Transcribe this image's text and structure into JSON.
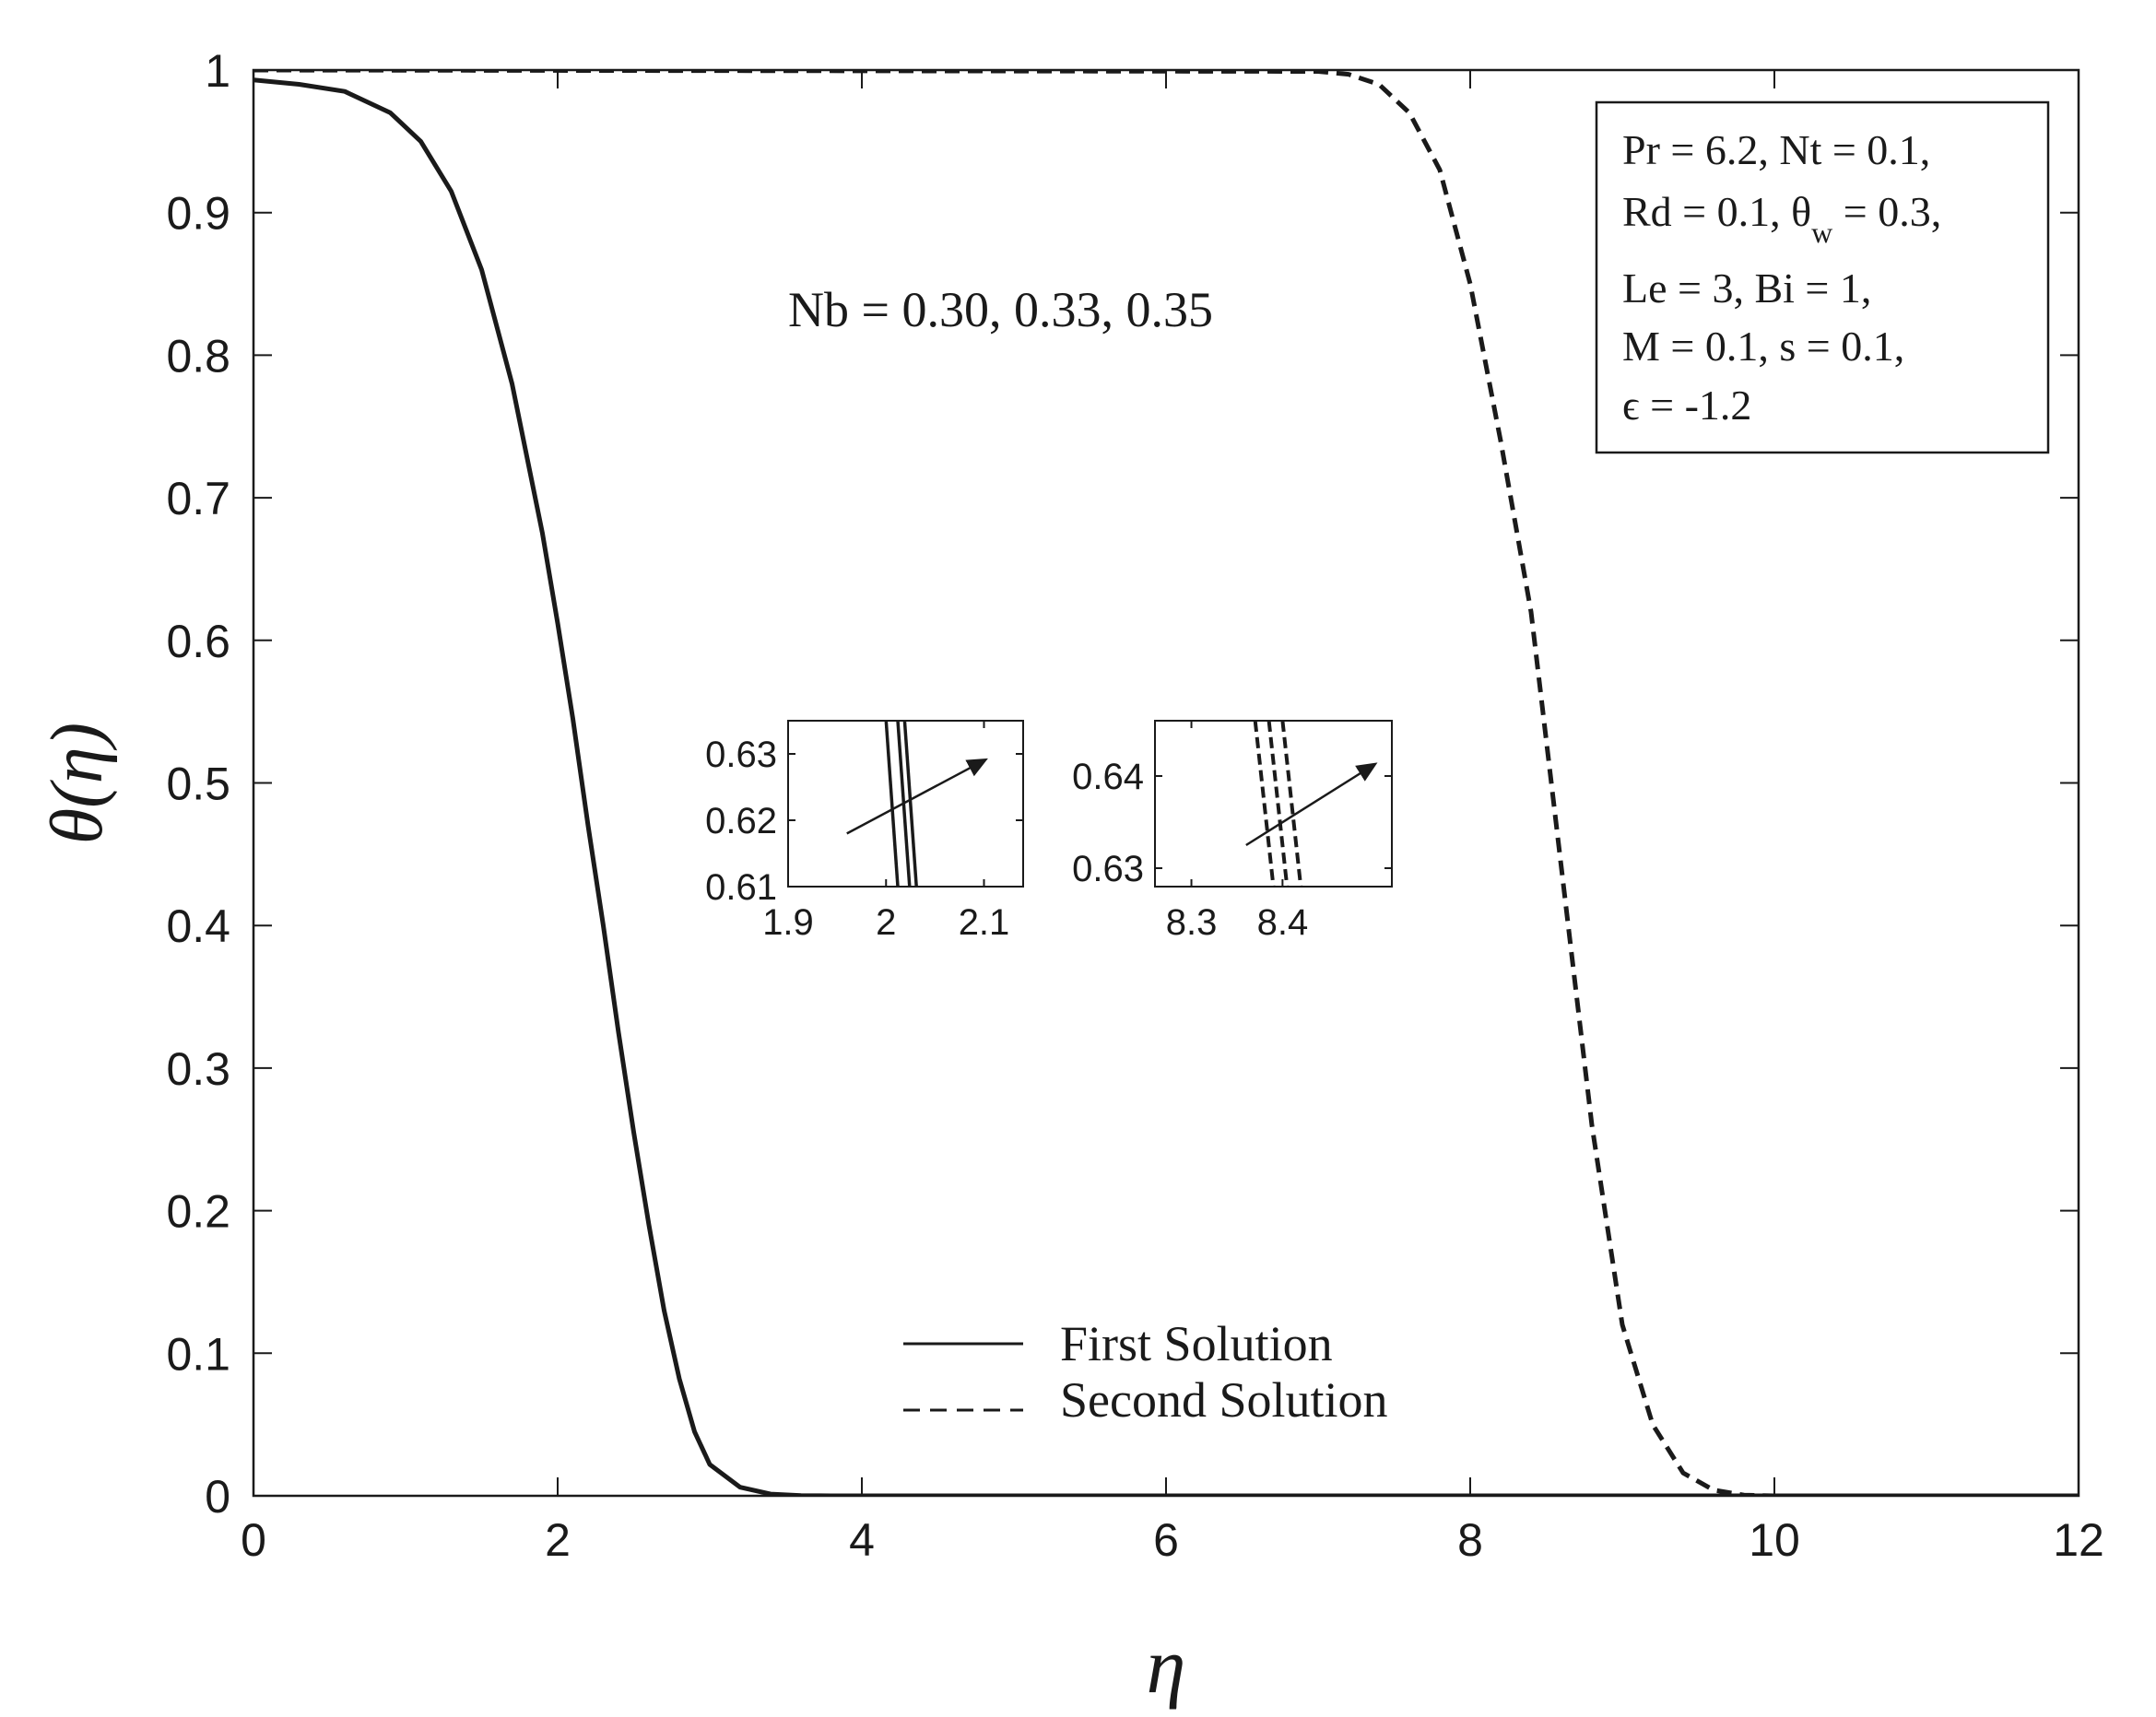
{
  "chart_data": [
    {
      "type": "line",
      "xlabel": "η",
      "ylabel": "θ(η)",
      "xlim": [
        0,
        12
      ],
      "ylim": [
        0,
        1
      ],
      "xticks": [
        "0",
        "2",
        "4",
        "6",
        "8",
        "10",
        "12"
      ],
      "yticks": [
        "0",
        "0.1",
        "0.2",
        "0.3",
        "0.4",
        "0.5",
        "0.6",
        "0.7",
        "0.8",
        "0.9",
        "1"
      ],
      "grid": false,
      "legend_position": "bottom-center",
      "legend": [
        {
          "label": "First Solution",
          "style": "solid"
        },
        {
          "label": "Second Solution",
          "style": "dashed"
        }
      ],
      "annotation": "Nb = 0.30, 0.33, 0.35",
      "parameter_box": {
        "lines": [
          "Pr = 6.2, Nt = 0.1,",
          "Rd = 0.1, θ",
          "w",
          " = 0.3,",
          "Le = 3, Bi = 1,",
          "M = 0.1, s = 0.1,",
          "ϵ = -1.2"
        ]
      },
      "color": "#1a1a1a",
      "series": [
        {
          "style": "solid",
          "x": [
            0,
            0.3,
            0.6,
            0.9,
            1.1,
            1.3,
            1.5,
            1.7,
            1.9,
            2.0,
            2.1,
            2.2,
            2.3,
            2.4,
            2.5,
            2.6,
            2.7,
            2.8,
            2.9,
            3.0,
            3.2,
            3.4,
            3.6,
            3.8,
            4.0,
            12
          ],
          "y": [
            0.993,
            0.99,
            0.985,
            0.97,
            0.95,
            0.915,
            0.86,
            0.78,
            0.675,
            0.612,
            0.545,
            0.47,
            0.4,
            0.325,
            0.255,
            0.19,
            0.13,
            0.082,
            0.045,
            0.022,
            0.006,
            0.0012,
            0.0002,
            0,
            0,
            0
          ]
        },
        {
          "style": "dashed",
          "x": [
            0,
            7.0,
            7.2,
            7.4,
            7.6,
            7.8,
            8.0,
            8.2,
            8.4,
            8.6,
            8.8,
            9.0,
            9.2,
            9.4,
            9.6,
            9.8,
            10.0,
            12
          ],
          "y": [
            1,
            0.999,
            0.997,
            0.99,
            0.97,
            0.93,
            0.85,
            0.74,
            0.62,
            0.44,
            0.26,
            0.12,
            0.05,
            0.016,
            0.004,
            0.0005,
            0,
            0
          ]
        }
      ]
    },
    {
      "type": "line",
      "xlim": [
        1.9,
        2.14
      ],
      "ylim": [
        0.61,
        0.635
      ],
      "xticks": [
        "1.9",
        "2",
        "2.1"
      ],
      "yticks": [
        "0.61",
        "0.62",
        "0.63"
      ],
      "color": "#1a1a1a",
      "series": [
        {
          "style": "solid",
          "x": [
            2.0,
            2.012
          ],
          "y": [
            0.635,
            0.61
          ]
        },
        {
          "style": "solid",
          "x": [
            2.012,
            2.024
          ],
          "y": [
            0.635,
            0.61
          ]
        },
        {
          "style": "solid",
          "x": [
            2.019,
            2.031
          ],
          "y": [
            0.635,
            0.61
          ]
        }
      ],
      "arrow": {
        "from": [
          1.96,
          0.618
        ],
        "to": [
          2.1,
          0.629
        ]
      }
    },
    {
      "type": "line",
      "xlim": [
        8.26,
        8.52
      ],
      "ylim": [
        0.628,
        0.646
      ],
      "xticks": [
        "8.3",
        "8.4"
      ],
      "yticks": [
        "0.63",
        "0.64"
      ],
      "color": "#1a1a1a",
      "series": [
        {
          "style": "dashed",
          "x": [
            8.37,
            8.39
          ],
          "y": [
            0.646,
            0.628
          ]
        },
        {
          "style": "dashed",
          "x": [
            8.385,
            8.405
          ],
          "y": [
            0.646,
            0.628
          ]
        },
        {
          "style": "dashed",
          "x": [
            8.4,
            8.42
          ],
          "y": [
            0.646,
            0.628
          ]
        }
      ],
      "arrow": {
        "from": [
          8.36,
          0.6325
        ],
        "to": [
          8.5,
          0.6412
        ]
      }
    }
  ]
}
